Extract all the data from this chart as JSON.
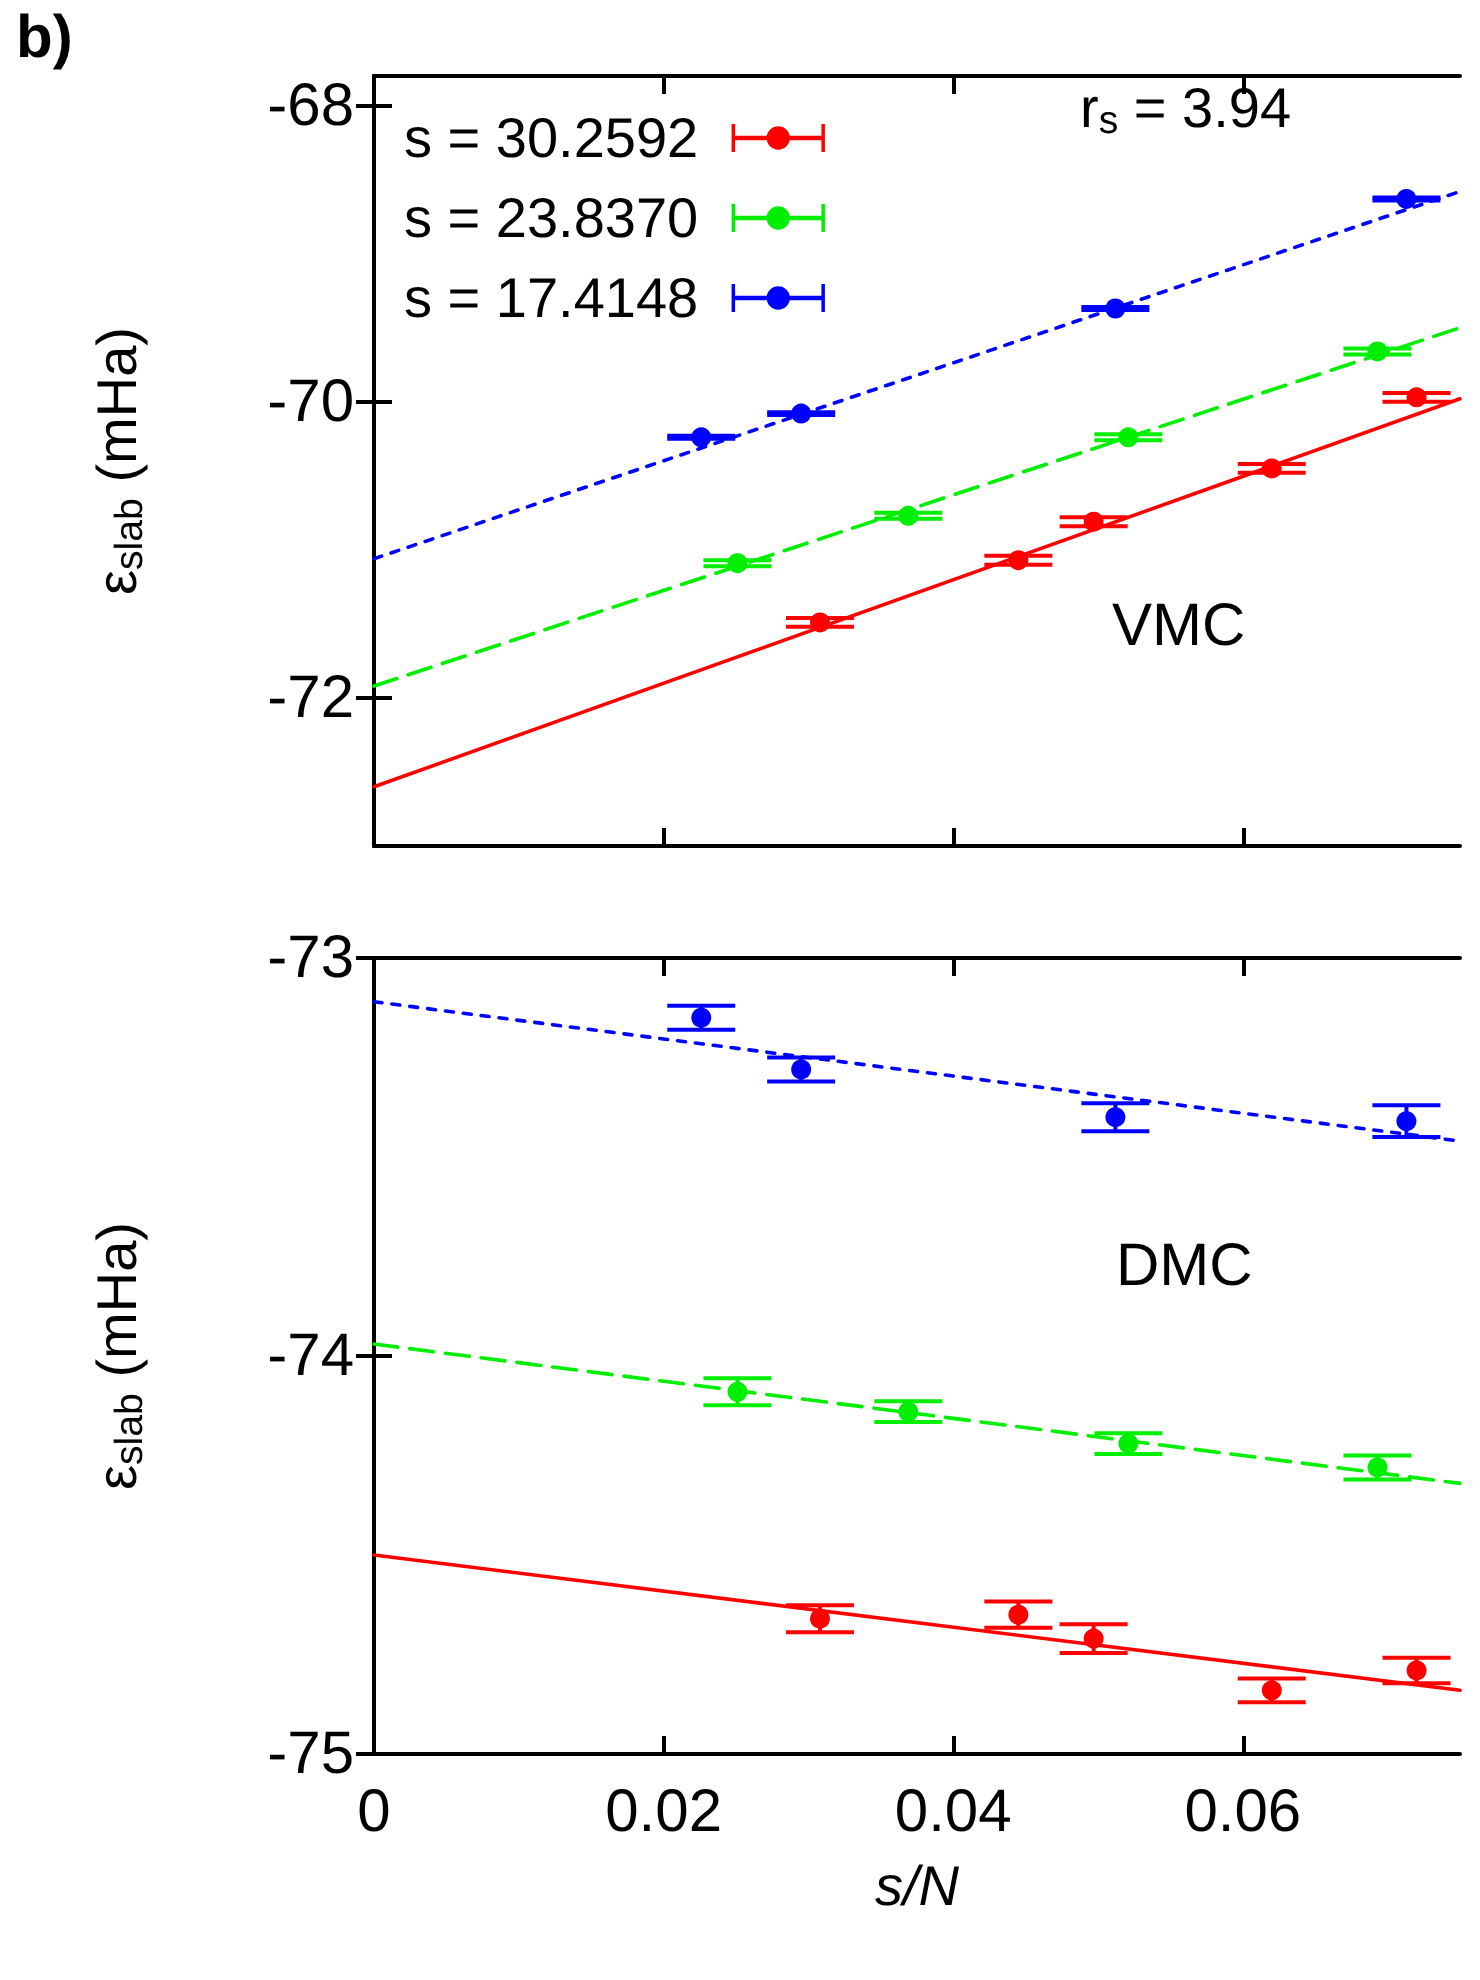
{
  "chart_data": [
    {
      "type": "scatter",
      "xlabel": null,
      "ylabel": "ε$_{slab}$ (mHa)",
      "annotations": [
        "b)",
        "r$_{s}$ = 3.94",
        "VMC"
      ],
      "xlim": [
        0,
        0.075
      ],
      "xticks": [
        0,
        0.02,
        0.04,
        0.06
      ],
      "ylim": [
        -73,
        -67.8
      ],
      "yticks": [
        -68,
        -70,
        -72
      ],
      "tick_labels": "y",
      "legend": "top left",
      "series": [
        {
          "name": "s = 30.2592",
          "marker": "circle",
          "color": "#ff0000",
          "x": [
            0.0308,
            0.0445,
            0.0497,
            0.062,
            0.072
          ],
          "values": [
            -71.49,
            -71.07,
            -70.81,
            -70.45,
            -69.97
          ],
          "errors": [
            0.03,
            0.03,
            0.03,
            0.03,
            0.03
          ]
        },
        {
          "name": "s = 23.8370",
          "marker": "circle",
          "color": "#00ee00",
          "x": [
            0.0251,
            0.0369,
            0.0521,
            0.0693
          ],
          "values": [
            -71.09,
            -70.77,
            -70.24,
            -69.66
          ],
          "errors": [
            0.02,
            0.02,
            0.02,
            0.02
          ]
        },
        {
          "name": "s = 17.4148",
          "marker": "circle",
          "color": "#0000ff",
          "x": [
            0.0226,
            0.0295,
            0.0512,
            0.0713
          ],
          "values": [
            -70.24,
            -70.08,
            -69.37,
            -68.63
          ],
          "errors": [
            0.01,
            0.01,
            0.01,
            0.01
          ]
        },
        {
          "type": "line",
          "color": "#ff0000",
          "line_style": "solid",
          "x": [
            0,
            0.075
          ],
          "values": [
            -72.6,
            -69.98
          ]
        },
        {
          "type": "line",
          "color": "#00ee00",
          "line_style": "dashed",
          "x": [
            0,
            0.075
          ],
          "values": [
            -71.92,
            -69.5
          ]
        },
        {
          "type": "line",
          "color": "#0000ff",
          "line_style": "dotted",
          "x": [
            0,
            0.075
          ],
          "values": [
            -71.06,
            -68.58
          ]
        }
      ]
    },
    {
      "type": "scatter",
      "xlabel": "s/N",
      "ylabel": "ε$_{slab}$ (mHa)",
      "annotations": [
        "DMC"
      ],
      "xlim": [
        0,
        0.075
      ],
      "xticks": [
        0,
        0.02,
        0.04,
        0.06
      ],
      "ylim": [
        -75,
        -73
      ],
      "yticks": [
        -73,
        -74,
        -75
      ],
      "series": [
        {
          "color": "#ff0000",
          "marker": "circle",
          "x": [
            0.0308,
            0.0445,
            0.0497,
            0.062,
            0.072
          ],
          "values": [
            -74.66,
            -74.65,
            -74.71,
            -74.84,
            -74.79
          ],
          "errors": [
            0.034,
            0.033,
            0.036,
            0.03,
            0.032
          ]
        },
        {
          "color": "#00ee00",
          "marker": "circle",
          "x": [
            0.0251,
            0.0369,
            0.0521,
            0.0693
          ],
          "values": [
            -74.09,
            -74.14,
            -74.22,
            -74.28
          ],
          "errors": [
            0.034,
            0.026,
            0.026,
            0.03
          ]
        },
        {
          "color": "#0000ff",
          "marker": "circle",
          "x": [
            0.0226,
            0.0295,
            0.0512,
            0.0713
          ],
          "values": [
            -73.15,
            -73.28,
            -73.4,
            -73.41
          ],
          "errors": [
            0.03,
            0.03,
            0.035,
            0.04
          ]
        },
        {
          "type": "line",
          "color": "#ff0000",
          "line_style": "solid",
          "x": [
            0,
            0.075
          ],
          "values": [
            -74.5,
            -74.84
          ]
        },
        {
          "type": "line",
          "color": "#00ee00",
          "line_style": "dashed",
          "x": [
            0,
            0.075
          ],
          "values": [
            -73.97,
            -74.32
          ]
        },
        {
          "type": "line",
          "color": "#0000ff",
          "line_style": "dotted",
          "x": [
            0,
            0.075
          ],
          "values": [
            -73.11,
            -73.46
          ]
        }
      ]
    }
  ]
}
